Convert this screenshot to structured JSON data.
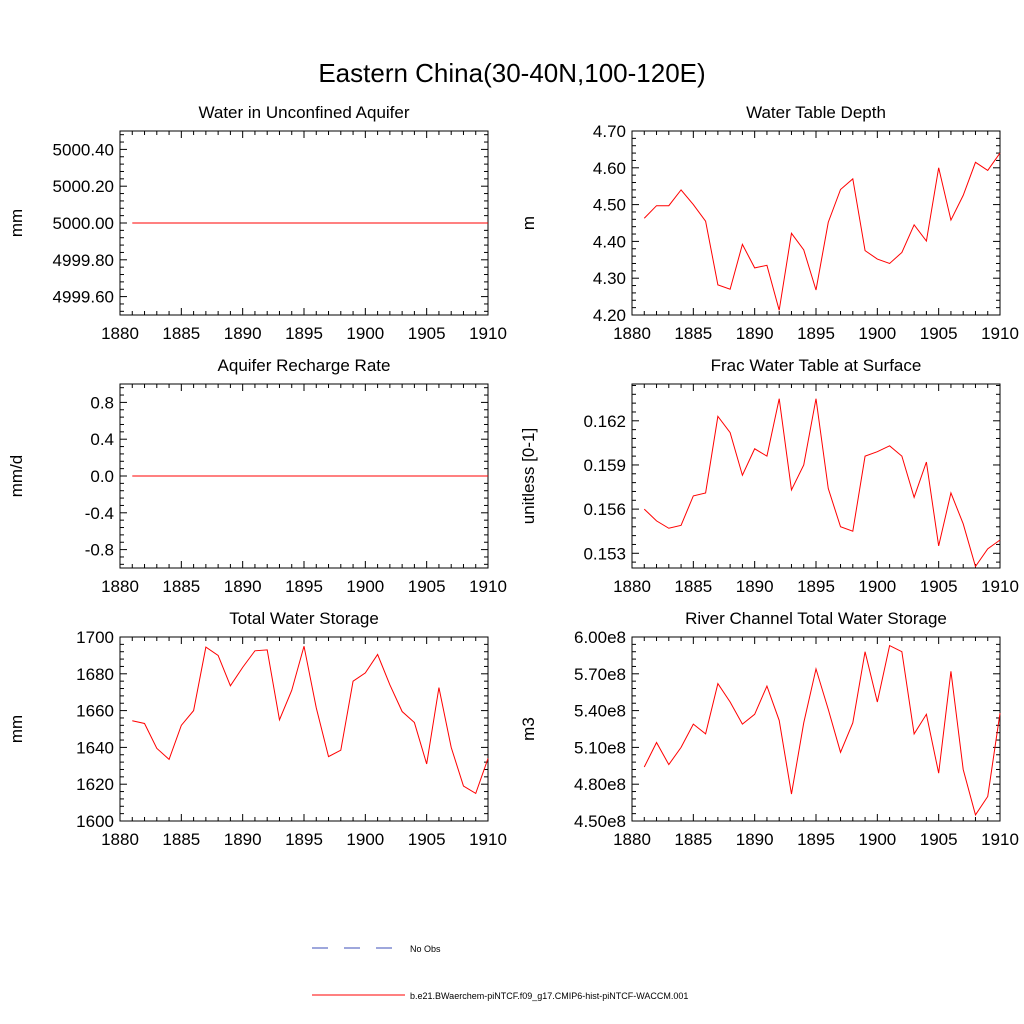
{
  "figure": {
    "title": "Eastern China(30-40N,100-120E)"
  },
  "legend": {
    "entries": [
      {
        "label": "No Obs",
        "color": "#3d4fb8",
        "style": "dashed"
      },
      {
        "label": "b.e21.BWaerchem-piNTCF.f09_g17.CMIP6-hist-piNTCF-WACCM.001",
        "color": "#ff0000",
        "style": "solid"
      }
    ]
  },
  "chart_data": [
    {
      "type": "line",
      "title": "Water in Unconfined Aquifer",
      "ylabel": "mm",
      "xlim": [
        1880,
        1910
      ],
      "ylim": [
        4999.5,
        5000.5
      ],
      "xticks": [
        1880,
        1885,
        1890,
        1895,
        1900,
        1905,
        1910
      ],
      "xtick_labels": [
        "1880",
        "1885",
        "1890",
        "1895",
        "1900",
        "1905",
        "1910"
      ],
      "yticks": [
        4999.6,
        4999.8,
        5000.0,
        5000.2,
        5000.4
      ],
      "ytick_labels": [
        "4999.60",
        "4999.80",
        "5000.00",
        "5000.20",
        "5000.40"
      ],
      "series": [
        {
          "color": "#ff0000",
          "x": [
            1881,
            1910
          ],
          "y": [
            5000.0,
            5000.0
          ]
        }
      ]
    },
    {
      "type": "line",
      "title": "Water Table Depth",
      "ylabel": "m",
      "xlim": [
        1880,
        1910
      ],
      "ylim": [
        4.2,
        4.7
      ],
      "xticks": [
        1880,
        1885,
        1890,
        1895,
        1900,
        1905,
        1910
      ],
      "xtick_labels": [
        "1880",
        "1885",
        "1890",
        "1895",
        "1900",
        "1905",
        "1910"
      ],
      "yticks": [
        4.2,
        4.3,
        4.4,
        4.5,
        4.6,
        4.7
      ],
      "ytick_labels": [
        "4.20",
        "4.30",
        "4.40",
        "4.50",
        "4.60",
        "4.70"
      ],
      "series": [
        {
          "color": "#ff0000",
          "x": [
            1881,
            1882,
            1883,
            1884,
            1885,
            1886,
            1887,
            1888,
            1889,
            1890,
            1891,
            1892,
            1893,
            1894,
            1895,
            1896,
            1897,
            1898,
            1899,
            1900,
            1901,
            1902,
            1903,
            1904,
            1905,
            1906,
            1907,
            1908,
            1909,
            1910
          ],
          "y": [
            4.463,
            4.497,
            4.497,
            4.54,
            4.5,
            4.455,
            4.282,
            4.27,
            4.392,
            4.328,
            4.335,
            4.213,
            4.422,
            4.377,
            4.268,
            4.452,
            4.541,
            4.57,
            4.375,
            4.352,
            4.34,
            4.37,
            4.445,
            4.401,
            4.6,
            4.458,
            4.525,
            4.615,
            4.593,
            4.64
          ]
        }
      ]
    },
    {
      "type": "line",
      "title": "Aquifer Recharge Rate",
      "ylabel": "mm/d",
      "xlim": [
        1880,
        1910
      ],
      "ylim": [
        -1.0,
        1.0
      ],
      "xticks": [
        1880,
        1885,
        1890,
        1895,
        1900,
        1905,
        1910
      ],
      "xtick_labels": [
        "1880",
        "1885",
        "1890",
        "1895",
        "1900",
        "1905",
        "1910"
      ],
      "yticks": [
        -0.8,
        -0.4,
        0.0,
        0.4,
        0.8
      ],
      "ytick_labels": [
        "-0.8",
        "-0.4",
        "0.0",
        "0.4",
        "0.8"
      ],
      "series": [
        {
          "color": "#ff0000",
          "x": [
            1881,
            1910
          ],
          "y": [
            0.0,
            0.0
          ]
        }
      ]
    },
    {
      "type": "line",
      "title": "Frac Water Table at Surface",
      "ylabel": "unitless [0-1]",
      "xlim": [
        1880,
        1910
      ],
      "ylim": [
        0.152,
        0.1645
      ],
      "xticks": [
        1880,
        1885,
        1890,
        1895,
        1900,
        1905,
        1910
      ],
      "xtick_labels": [
        "1880",
        "1885",
        "1890",
        "1895",
        "1900",
        "1905",
        "1910"
      ],
      "yticks": [
        0.153,
        0.156,
        0.159,
        0.162
      ],
      "ytick_labels": [
        "0.153",
        "0.156",
        "0.159",
        "0.162"
      ],
      "series": [
        {
          "color": "#ff0000",
          "x": [
            1881,
            1882,
            1883,
            1884,
            1885,
            1886,
            1887,
            1888,
            1889,
            1890,
            1891,
            1892,
            1893,
            1894,
            1895,
            1896,
            1897,
            1898,
            1899,
            1900,
            1901,
            1902,
            1903,
            1904,
            1905,
            1906,
            1907,
            1908,
            1909,
            1910
          ],
          "y": [
            0.156,
            0.1552,
            0.1547,
            0.1549,
            0.1569,
            0.1571,
            0.1623,
            0.1612,
            0.1583,
            0.1601,
            0.1596,
            0.1635,
            0.1573,
            0.159,
            0.1635,
            0.1574,
            0.1548,
            0.1545,
            0.1596,
            0.1599,
            0.1603,
            0.1596,
            0.1568,
            0.1592,
            0.1535,
            0.1571,
            0.155,
            0.1521,
            0.1533,
            0.1539
          ]
        }
      ]
    },
    {
      "type": "line",
      "title": "Total Water Storage",
      "ylabel": "mm",
      "xlim": [
        1880,
        1910
      ],
      "ylim": [
        1600,
        1700
      ],
      "xticks": [
        1880,
        1885,
        1890,
        1895,
        1900,
        1905,
        1910
      ],
      "xtick_labels": [
        "1880",
        "1885",
        "1890",
        "1895",
        "1900",
        "1905",
        "1910"
      ],
      "yticks": [
        1600,
        1620,
        1640,
        1660,
        1680,
        1700
      ],
      "ytick_labels": [
        "1600",
        "1620",
        "1640",
        "1660",
        "1680",
        "1700"
      ],
      "series": [
        {
          "color": "#ff0000",
          "x": [
            1881,
            1882,
            1883,
            1884,
            1885,
            1886,
            1887,
            1888,
            1889,
            1890,
            1891,
            1892,
            1893,
            1894,
            1895,
            1896,
            1897,
            1898,
            1899,
            1900,
            1901,
            1902,
            1903,
            1904,
            1905,
            1906,
            1907,
            1908,
            1909,
            1910
          ],
          "y": [
            1654.5,
            1653,
            1639.5,
            1633.5,
            1652,
            1660,
            1694.5,
            1690,
            1673.5,
            1683.5,
            1692.5,
            1693,
            1655,
            1671,
            1695,
            1661.5,
            1635,
            1638.5,
            1676,
            1680.5,
            1690.5,
            1674,
            1659.5,
            1653.5,
            1631,
            1672.5,
            1640,
            1619,
            1615,
            1634
          ]
        }
      ]
    },
    {
      "type": "line",
      "title": "River Channel Total Water Storage",
      "ylabel": "m3",
      "xlim": [
        1880,
        1910
      ],
      "ylim": [
        450000000,
        600000000
      ],
      "xticks": [
        1880,
        1885,
        1890,
        1895,
        1900,
        1905,
        1910
      ],
      "xtick_labels": [
        "1880",
        "1885",
        "1890",
        "1895",
        "1900",
        "1905",
        "1910"
      ],
      "yticks": [
        450000000,
        480000000,
        510000000,
        540000000,
        570000000,
        600000000
      ],
      "ytick_labels": [
        "4.50e8",
        "4.80e8",
        "5.10e8",
        "5.40e8",
        "5.70e8",
        "6.00e8"
      ],
      "series": [
        {
          "color": "#ff0000",
          "x": [
            1881,
            1882,
            1883,
            1884,
            1885,
            1886,
            1887,
            1888,
            1889,
            1890,
            1891,
            1892,
            1893,
            1894,
            1895,
            1896,
            1897,
            1898,
            1899,
            1900,
            1901,
            1902,
            1903,
            1904,
            1905,
            1906,
            1907,
            1908,
            1909,
            1910
          ],
          "y": [
            494000000,
            514000000,
            496000000,
            510000000,
            529000000,
            521000000,
            562000000,
            547000000,
            529000000,
            537000000,
            560000000,
            532000000,
            472000000,
            530000000,
            574000000,
            541000000,
            506000000,
            530000000,
            588000000,
            547000000,
            593000000,
            588000000,
            521000000,
            537000000,
            489000000,
            572000000,
            492000000,
            455000000,
            470000000,
            538000000
          ]
        }
      ]
    }
  ]
}
